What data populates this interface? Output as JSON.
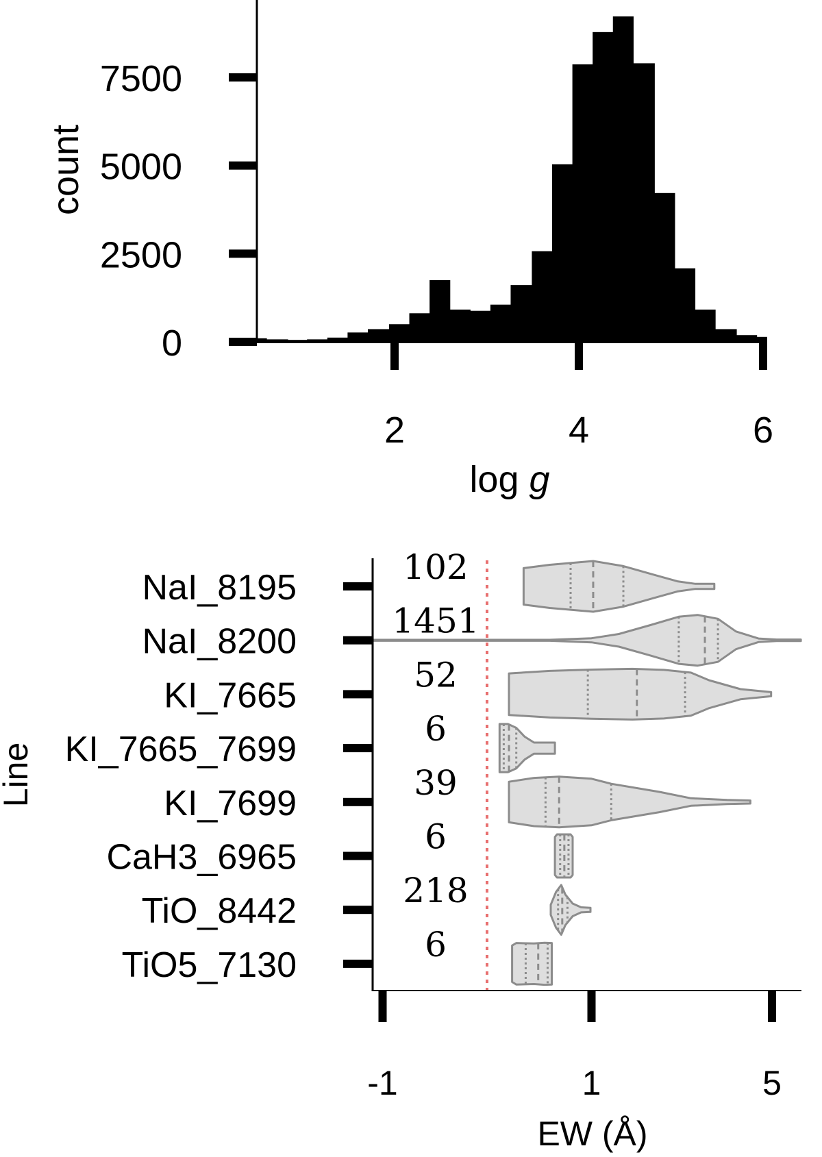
{
  "chart_data": [
    {
      "type": "bar",
      "subtype": "histogram",
      "xlabel_text": "log ",
      "xlabel_italic": "g",
      "ylabel": "count",
      "xlim": [
        0.5,
        6.05
      ],
      "ylim": [
        0,
        9500
      ],
      "xticks": [
        2,
        4,
        6
      ],
      "xtick_labels": [
        "2",
        "4",
        "6"
      ],
      "yticks": [
        0,
        2500,
        5000,
        7500
      ],
      "ytick_labels": [
        "0",
        "2500",
        "5000",
        "7500"
      ],
      "bin_edges": [
        0.5,
        0.61,
        0.84,
        1.05,
        1.27,
        1.49,
        1.71,
        1.94,
        2.16,
        2.38,
        2.6,
        2.82,
        3.04,
        3.26,
        3.49,
        3.71,
        3.93,
        4.15,
        4.37,
        4.59,
        4.82,
        5.04,
        5.26,
        5.48,
        5.71,
        5.93,
        6.04
      ],
      "counts": [
        100,
        70,
        55,
        70,
        120,
        265,
        360,
        500,
        810,
        1750,
        915,
        880,
        1055,
        1610,
        2570,
        5035,
        7870,
        8785,
        9230,
        7900,
        4220,
        2085,
        915,
        360,
        190,
        140
      ],
      "grid": false,
      "color": "#000000"
    },
    {
      "type": "violin",
      "xlabel": "EW (Å)",
      "ylabel": "Line",
      "xscale": "symlog",
      "xticks": [
        -1,
        1,
        5
      ],
      "xtick_labels": [
        "-1",
        "1",
        "5"
      ],
      "reference_line": {
        "x": 0,
        "style": "dotted",
        "color": "#e87070"
      },
      "fill_color": "#dedede",
      "edge_color": "#8c8c8c",
      "violins": [
        {
          "label": "NaI_8195",
          "n": "102",
          "q1": 0.8,
          "median": 1.03,
          "q3": 1.7,
          "profile": [
            [
              0.35,
              0.72
            ],
            [
              0.6,
              0.85
            ],
            [
              1.03,
              1
            ],
            [
              1.7,
              0.8
            ],
            [
              2.4,
              0.45
            ],
            [
              2.9,
              0.2
            ],
            [
              3.3,
              0.1
            ],
            [
              3.72,
              0.1
            ]
          ]
        },
        {
          "label": "NaI_8200",
          "n": "1451",
          "q1": 2.93,
          "median": 3.51,
          "q3": 3.8,
          "profile": [
            [
              -1.1,
              0.02
            ],
            [
              0.6,
              0.02
            ],
            [
              1,
              0.08
            ],
            [
              1.6,
              0.25
            ],
            [
              2.3,
              0.6
            ],
            [
              2.93,
              0.93
            ],
            [
              3.35,
              1
            ],
            [
              3.8,
              0.85
            ],
            [
              4.2,
              0.35
            ],
            [
              4.7,
              0.07
            ],
            [
              5.1,
              0.03
            ],
            [
              5.64,
              0.03
            ]
          ]
        },
        {
          "label": "KI_7665",
          "n": "52",
          "q1": 0.965,
          "median": 2.0,
          "q3": 3.07,
          "profile": [
            [
              0.21,
              0.82
            ],
            [
              0.6,
              0.92
            ],
            [
              1,
              0.97
            ],
            [
              1.9,
              1
            ],
            [
              2.6,
              0.96
            ],
            [
              3.2,
              0.85
            ],
            [
              3.6,
              0.55
            ],
            [
              4.3,
              0.2
            ],
            [
              4.98,
              0.08
            ]
          ]
        },
        {
          "label": "KI_7665_7699",
          "n": "6",
          "q1": 0.16,
          "median": 0.21,
          "q3": 0.28,
          "profile": [
            [
              0.12,
              0.95
            ],
            [
              0.2,
              0.95
            ],
            [
              0.28,
              0.8
            ],
            [
              0.36,
              0.45
            ],
            [
              0.45,
              0.22
            ],
            [
              0.65,
              0.22
            ]
          ]
        },
        {
          "label": "KI_7699",
          "n": "39",
          "q1": 0.56,
          "median": 0.69,
          "q3": 1.43,
          "profile": [
            [
              0.21,
              0.8
            ],
            [
              0.45,
              0.95
            ],
            [
              0.69,
              1
            ],
            [
              1.0,
              0.92
            ],
            [
              1.43,
              0.72
            ],
            [
              2.5,
              0.4
            ],
            [
              3.2,
              0.15
            ],
            [
              4.0,
              0.08
            ],
            [
              4.52,
              0.06
            ]
          ]
        },
        {
          "label": "CaH3_6965",
          "n": "6",
          "q1": 0.7,
          "median": 0.74,
          "q3": 0.78,
          "profile": [
            [
              0.65,
              0.75
            ],
            [
              0.67,
              0.85
            ],
            [
              0.8,
              0.85
            ],
            [
              0.82,
              0.75
            ]
          ]
        },
        {
          "label": "TiO_8442",
          "n": "218",
          "q1": 0.68,
          "median": 0.72,
          "q3": 0.77,
          "profile": [
            [
              0.61,
              0.2
            ],
            [
              0.66,
              0.7
            ],
            [
              0.71,
              0.98
            ],
            [
              0.75,
              0.6
            ],
            [
              0.82,
              0.25
            ],
            [
              0.9,
              0.1
            ],
            [
              0.99,
              0.08
            ]
          ]
        },
        {
          "label": "TiO5_7130",
          "n": "6",
          "q1": 0.37,
          "median": 0.49,
          "q3": 0.58,
          "profile": [
            [
              0.24,
              0.72
            ],
            [
              0.28,
              0.82
            ],
            [
              0.45,
              0.8
            ],
            [
              0.55,
              0.83
            ],
            [
              0.62,
              0.82
            ]
          ]
        }
      ]
    }
  ]
}
